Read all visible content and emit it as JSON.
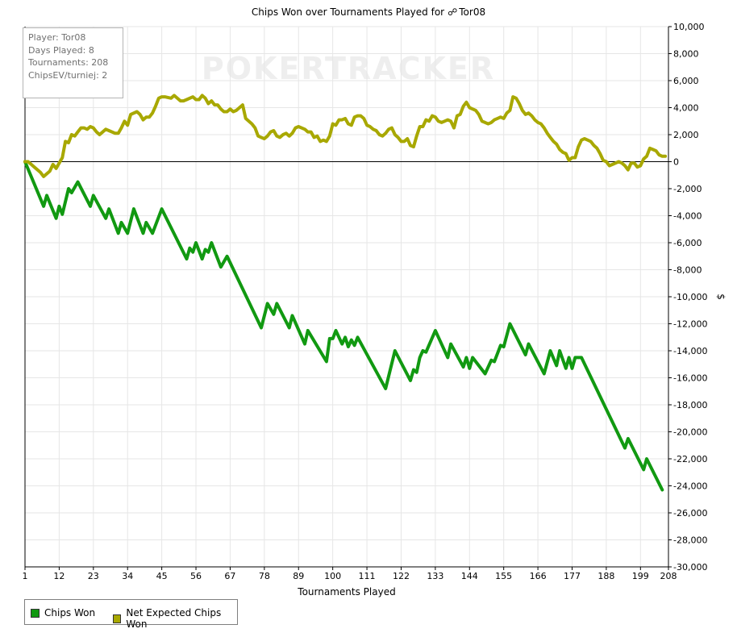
{
  "title_prefix": "Chips Won over Tournaments Played for",
  "player_name": "Tor08",
  "watermark": "POKERTRACKER",
  "stats": {
    "player": "Player: Tor08",
    "days": "Days Played: 8",
    "tournaments": "Tournaments: 208",
    "chipsev": "ChipsEV/turniej: 2"
  },
  "legend": {
    "chips_won": "Chips Won",
    "net_expected": "Net Expected Chips Won"
  },
  "colors": {
    "chips_won": "#119911",
    "net_expected": "#a8a800",
    "zero_line": "#000000",
    "grid": "#e6e6e6"
  },
  "chart_data": {
    "type": "line",
    "title": "Chips Won over Tournaments Played for Tor08",
    "xlabel": "Tournaments Played",
    "ylabel": "$",
    "xlim": [
      1,
      208
    ],
    "ylim": [
      -30000,
      10000
    ],
    "x_ticks": [
      1,
      12,
      23,
      34,
      45,
      56,
      67,
      78,
      89,
      100,
      111,
      122,
      133,
      144,
      155,
      166,
      177,
      188,
      199,
      208
    ],
    "y_ticks": [
      10000,
      8000,
      6000,
      4000,
      2000,
      0,
      -2000,
      -4000,
      -6000,
      -8000,
      -10000,
      -12000,
      -14000,
      -16000,
      -18000,
      -20000,
      -22000,
      -24000,
      -26000,
      -28000,
      -30000
    ],
    "y_tick_labels": [
      "10,000",
      "8,000",
      "6,000",
      "4,000",
      "2,000",
      "0",
      "-2,000",
      "-4,000",
      "-6,000",
      "-8,000",
      "-10,000",
      "-12,000",
      "-14,000",
      "-16,000",
      "-18,000",
      "-20,000",
      "-22,000",
      "-24,000",
      "-26,000",
      "-28,000",
      "-30,000"
    ],
    "grid": true,
    "legend_position": "bottom-left",
    "series": [
      {
        "name": "Chips Won",
        "color": "#119911",
        "points": [
          [
            1,
            0
          ],
          [
            7,
            -3300
          ],
          [
            8,
            -2500
          ],
          [
            11,
            -4200
          ],
          [
            12,
            -3300
          ],
          [
            13,
            -3900
          ],
          [
            15,
            -2000
          ],
          [
            16,
            -2300
          ],
          [
            18,
            -1500
          ],
          [
            22,
            -3300
          ],
          [
            23,
            -2500
          ],
          [
            27,
            -4200
          ],
          [
            28,
            -3500
          ],
          [
            31,
            -5300
          ],
          [
            32,
            -4500
          ],
          [
            34,
            -5300
          ],
          [
            36,
            -3500
          ],
          [
            39,
            -5300
          ],
          [
            40,
            -4500
          ],
          [
            42,
            -5300
          ],
          [
            45,
            -3500
          ],
          [
            53,
            -7200
          ],
          [
            54,
            -6400
          ],
          [
            55,
            -6700
          ],
          [
            56,
            -6000
          ],
          [
            58,
            -7200
          ],
          [
            59,
            -6500
          ],
          [
            60,
            -6700
          ],
          [
            61,
            -6000
          ],
          [
            64,
            -7800
          ],
          [
            66,
            -7000
          ],
          [
            77,
            -12300
          ],
          [
            79,
            -10500
          ],
          [
            81,
            -11300
          ],
          [
            82,
            -10500
          ],
          [
            86,
            -12300
          ],
          [
            87,
            -11400
          ],
          [
            91,
            -13500
          ],
          [
            92,
            -12500
          ],
          [
            98,
            -14800
          ],
          [
            99,
            -13100
          ],
          [
            100,
            -13100
          ],
          [
            101,
            -12500
          ],
          [
            103,
            -13500
          ],
          [
            104,
            -13000
          ],
          [
            105,
            -13700
          ],
          [
            106,
            -13200
          ],
          [
            107,
            -13600
          ],
          [
            108,
            -13000
          ],
          [
            117,
            -16800
          ],
          [
            120,
            -14000
          ],
          [
            125,
            -16200
          ],
          [
            126,
            -15400
          ],
          [
            127,
            -15600
          ],
          [
            128,
            -14500
          ],
          [
            129,
            -14000
          ],
          [
            130,
            -14100
          ],
          [
            133,
            -12500
          ],
          [
            137,
            -14500
          ],
          [
            138,
            -13500
          ],
          [
            142,
            -15200
          ],
          [
            143,
            -14500
          ],
          [
            144,
            -15300
          ],
          [
            145,
            -14500
          ],
          [
            149,
            -15700
          ],
          [
            151,
            -14700
          ],
          [
            152,
            -14800
          ],
          [
            153,
            -14200
          ],
          [
            154,
            -13600
          ],
          [
            155,
            -13700
          ],
          [
            157,
            -12000
          ],
          [
            162,
            -14300
          ],
          [
            163,
            -13500
          ],
          [
            168,
            -15700
          ],
          [
            170,
            -14000
          ],
          [
            172,
            -15100
          ],
          [
            173,
            -14000
          ],
          [
            175,
            -15300
          ],
          [
            176,
            -14500
          ],
          [
            177,
            -15300
          ],
          [
            178,
            -14500
          ],
          [
            180,
            -14500
          ],
          [
            194,
            -21200
          ],
          [
            195,
            -20500
          ],
          [
            200,
            -22800
          ],
          [
            201,
            -22000
          ],
          [
            206,
            -24300
          ]
        ]
      },
      {
        "name": "Net Expected Chips Won",
        "color": "#a8a800",
        "points": [
          [
            1,
            0
          ],
          [
            2,
            0
          ],
          [
            4,
            -400
          ],
          [
            6,
            -800
          ],
          [
            7,
            -1100
          ],
          [
            9,
            -700
          ],
          [
            10,
            -200
          ],
          [
            11,
            -500
          ],
          [
            13,
            300
          ],
          [
            14,
            1500
          ],
          [
            15,
            1400
          ],
          [
            16,
            2000
          ],
          [
            17,
            1900
          ],
          [
            18,
            2200
          ],
          [
            19,
            2500
          ],
          [
            20,
            2500
          ],
          [
            21,
            2400
          ],
          [
            22,
            2600
          ],
          [
            23,
            2500
          ],
          [
            24,
            2200
          ],
          [
            25,
            2000
          ],
          [
            27,
            2400
          ],
          [
            28,
            2300
          ],
          [
            30,
            2100
          ],
          [
            31,
            2100
          ],
          [
            32,
            2500
          ],
          [
            33,
            3000
          ],
          [
            34,
            2700
          ],
          [
            35,
            3500
          ],
          [
            37,
            3700
          ],
          [
            38,
            3500
          ],
          [
            39,
            3100
          ],
          [
            40,
            3300
          ],
          [
            41,
            3300
          ],
          [
            42,
            3600
          ],
          [
            43,
            4100
          ],
          [
            44,
            4700
          ],
          [
            45,
            4800
          ],
          [
            46,
            4800
          ],
          [
            48,
            4700
          ],
          [
            49,
            4900
          ],
          [
            50,
            4700
          ],
          [
            51,
            4500
          ],
          [
            52,
            4500
          ],
          [
            53,
            4600
          ],
          [
            54,
            4700
          ],
          [
            55,
            4800
          ],
          [
            56,
            4600
          ],
          [
            57,
            4600
          ],
          [
            58,
            4900
          ],
          [
            59,
            4700
          ],
          [
            60,
            4300
          ],
          [
            61,
            4500
          ],
          [
            62,
            4200
          ],
          [
            63,
            4200
          ],
          [
            64,
            3900
          ],
          [
            65,
            3700
          ],
          [
            66,
            3700
          ],
          [
            67,
            3900
          ],
          [
            68,
            3700
          ],
          [
            69,
            3800
          ],
          [
            70,
            4000
          ],
          [
            71,
            4200
          ],
          [
            72,
            3200
          ],
          [
            74,
            2800
          ],
          [
            75,
            2500
          ],
          [
            76,
            1900
          ],
          [
            77,
            1800
          ],
          [
            78,
            1700
          ],
          [
            79,
            1900
          ],
          [
            80,
            2200
          ],
          [
            81,
            2300
          ],
          [
            82,
            1900
          ],
          [
            83,
            1800
          ],
          [
            84,
            2000
          ],
          [
            85,
            2100
          ],
          [
            86,
            1900
          ],
          [
            87,
            2100
          ],
          [
            88,
            2500
          ],
          [
            89,
            2600
          ],
          [
            91,
            2400
          ],
          [
            92,
            2200
          ],
          [
            93,
            2200
          ],
          [
            94,
            1800
          ],
          [
            95,
            1900
          ],
          [
            96,
            1500
          ],
          [
            97,
            1600
          ],
          [
            98,
            1500
          ],
          [
            99,
            1900
          ],
          [
            100,
            2800
          ],
          [
            101,
            2700
          ],
          [
            102,
            3100
          ],
          [
            103,
            3100
          ],
          [
            104,
            3200
          ],
          [
            105,
            2800
          ],
          [
            106,
            2700
          ],
          [
            107,
            3300
          ],
          [
            108,
            3400
          ],
          [
            109,
            3400
          ],
          [
            110,
            3200
          ],
          [
            111,
            2700
          ],
          [
            112,
            2600
          ],
          [
            113,
            2400
          ],
          [
            114,
            2300
          ],
          [
            115,
            2000
          ],
          [
            116,
            1900
          ],
          [
            117,
            2100
          ],
          [
            118,
            2400
          ],
          [
            119,
            2500
          ],
          [
            120,
            2000
          ],
          [
            121,
            1800
          ],
          [
            122,
            1500
          ],
          [
            123,
            1500
          ],
          [
            124,
            1700
          ],
          [
            125,
            1200
          ],
          [
            126,
            1100
          ],
          [
            127,
            1900
          ],
          [
            128,
            2600
          ],
          [
            129,
            2600
          ],
          [
            130,
            3100
          ],
          [
            131,
            3000
          ],
          [
            132,
            3400
          ],
          [
            133,
            3300
          ],
          [
            134,
            3000
          ],
          [
            135,
            2900
          ],
          [
            136,
            3000
          ],
          [
            137,
            3100
          ],
          [
            138,
            3000
          ],
          [
            139,
            2500
          ],
          [
            140,
            3400
          ],
          [
            141,
            3500
          ],
          [
            142,
            4100
          ],
          [
            143,
            4400
          ],
          [
            144,
            4000
          ],
          [
            145,
            3900
          ],
          [
            146,
            3800
          ],
          [
            147,
            3500
          ],
          [
            148,
            3000
          ],
          [
            149,
            2900
          ],
          [
            150,
            2800
          ],
          [
            151,
            2900
          ],
          [
            152,
            3100
          ],
          [
            153,
            3200
          ],
          [
            154,
            3300
          ],
          [
            155,
            3200
          ],
          [
            156,
            3600
          ],
          [
            157,
            3800
          ],
          [
            158,
            4800
          ],
          [
            159,
            4700
          ],
          [
            160,
            4300
          ],
          [
            161,
            3800
          ],
          [
            162,
            3500
          ],
          [
            163,
            3600
          ],
          [
            164,
            3400
          ],
          [
            165,
            3100
          ],
          [
            166,
            2900
          ],
          [
            167,
            2800
          ],
          [
            168,
            2500
          ],
          [
            169,
            2100
          ],
          [
            170,
            1800
          ],
          [
            171,
            1500
          ],
          [
            172,
            1300
          ],
          [
            173,
            900
          ],
          [
            174,
            700
          ],
          [
            175,
            600
          ],
          [
            176,
            100
          ],
          [
            177,
            300
          ],
          [
            178,
            300
          ],
          [
            179,
            1100
          ],
          [
            180,
            1600
          ],
          [
            181,
            1700
          ],
          [
            182,
            1600
          ],
          [
            183,
            1500
          ],
          [
            184,
            1200
          ],
          [
            185,
            1000
          ],
          [
            186,
            600
          ],
          [
            187,
            100
          ],
          [
            188,
            0
          ],
          [
            189,
            -300
          ],
          [
            190,
            -200
          ],
          [
            191,
            -100
          ],
          [
            192,
            0
          ],
          [
            193,
            -100
          ],
          [
            194,
            -300
          ],
          [
            195,
            -600
          ],
          [
            196,
            -100
          ],
          [
            197,
            -100
          ],
          [
            198,
            -400
          ],
          [
            199,
            -300
          ],
          [
            200,
            200
          ],
          [
            201,
            400
          ],
          [
            202,
            1000
          ],
          [
            203,
            900
          ],
          [
            204,
            800
          ],
          [
            205,
            500
          ],
          [
            206,
            400
          ],
          [
            207,
            400
          ]
        ]
      }
    ]
  }
}
